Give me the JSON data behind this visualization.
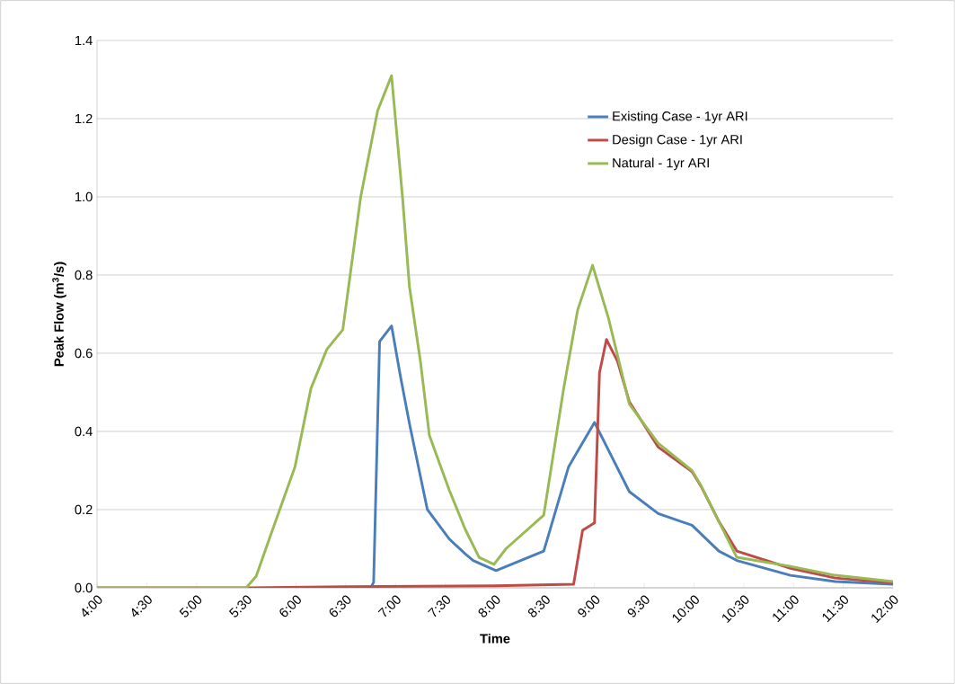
{
  "chart_data": {
    "type": "line",
    "xlabel": "Time",
    "ylabel": "Peak Flow (m$^{3}$/s)",
    "xlim": [
      4,
      12
    ],
    "ylim": [
      0,
      1.4
    ],
    "xticks": [
      {
        "value": 4,
        "label": "4:00"
      },
      {
        "value": 4.5,
        "label": "4:30"
      },
      {
        "value": 5,
        "label": "5:00"
      },
      {
        "value": 5.5,
        "label": "5:30"
      },
      {
        "value": 6,
        "label": "6:00"
      },
      {
        "value": 6.5,
        "label": "6:30"
      },
      {
        "value": 7,
        "label": "7:00"
      },
      {
        "value": 7.5,
        "label": "7:30"
      },
      {
        "value": 8,
        "label": "8:00"
      },
      {
        "value": 8.5,
        "label": "8:30"
      },
      {
        "value": 9,
        "label": "9:00"
      },
      {
        "value": 9.5,
        "label": "9:30"
      },
      {
        "value": 10,
        "label": "10:00"
      },
      {
        "value": 10.5,
        "label": "10:30"
      },
      {
        "value": 11,
        "label": "11:00"
      },
      {
        "value": 11.5,
        "label": "11:30"
      },
      {
        "value": 12,
        "label": "12:00"
      }
    ],
    "yticks": [
      {
        "value": 0,
        "label": "0.0"
      },
      {
        "value": 0.2,
        "label": "0.2"
      },
      {
        "value": 0.4,
        "label": "0.4"
      },
      {
        "value": 0.6,
        "label": "0.6"
      },
      {
        "value": 0.8,
        "label": "0.8"
      },
      {
        "value": 1.0,
        "label": "1.0"
      },
      {
        "value": 1.2,
        "label": "1.2"
      },
      {
        "value": 1.4,
        "label": "1.4"
      }
    ],
    "grid": "y",
    "legend": "top right",
    "marker": "none",
    "line_style": "solid",
    "series": [
      {
        "name": "Existing Case - 1yr ARI",
        "color": "#4a7ebb",
        "x": [
          6.5,
          6.75,
          6.78,
          6.84,
          6.96,
          7.05,
          7.14,
          7.32,
          7.54,
          7.7,
          7.78,
          8.01,
          8.49,
          8.74,
          9.0,
          9.35,
          9.64,
          9.98,
          10.25,
          10.43,
          10.97,
          11.42,
          12
        ],
        "values": [
          0,
          0,
          0.014,
          0.63,
          0.67,
          0.54,
          0.42,
          0.2,
          0.125,
          0.087,
          0.07,
          0.044,
          0.094,
          0.31,
          0.423,
          0.246,
          0.19,
          0.16,
          0.094,
          0.07,
          0.032,
          0.016,
          0.009
        ]
      },
      {
        "name": "Design Case - 1yr ARI",
        "color": "#be4b48",
        "x": [
          4,
          5.5,
          6.5,
          8.0,
          8.79,
          8.88,
          9.0,
          9.05,
          9.12,
          9.23,
          9.35,
          9.64,
          9.98,
          10.07,
          10.25,
          10.43,
          10.97,
          11.42,
          12
        ],
        "values": [
          0,
          0,
          0.003,
          0.005,
          0.009,
          0.147,
          0.166,
          0.55,
          0.635,
          0.58,
          0.476,
          0.36,
          0.297,
          0.26,
          0.17,
          0.094,
          0.05,
          0.025,
          0.013
        ]
      },
      {
        "name": "Natural - 1yr ARI",
        "color": "#98b954",
        "x": [
          4,
          5.5,
          5.6,
          5.73,
          5.99,
          6.15,
          6.31,
          6.47,
          6.65,
          6.82,
          6.96,
          7.07,
          7.14,
          7.25,
          7.34,
          7.54,
          7.7,
          7.84,
          7.99,
          8.11,
          8.49,
          8.69,
          8.83,
          8.98,
          9.14,
          9.35,
          9.64,
          9.98,
          10.07,
          10.25,
          10.43,
          10.97,
          11.42,
          12
        ],
        "values": [
          0,
          0,
          0.03,
          0.124,
          0.31,
          0.51,
          0.61,
          0.66,
          1.0,
          1.22,
          1.31,
          1.0,
          0.77,
          0.58,
          0.39,
          0.25,
          0.15,
          0.078,
          0.06,
          0.1,
          0.186,
          0.51,
          0.71,
          0.825,
          0.69,
          0.47,
          0.37,
          0.3,
          0.262,
          0.17,
          0.078,
          0.055,
          0.032,
          0.016
        ]
      }
    ]
  }
}
